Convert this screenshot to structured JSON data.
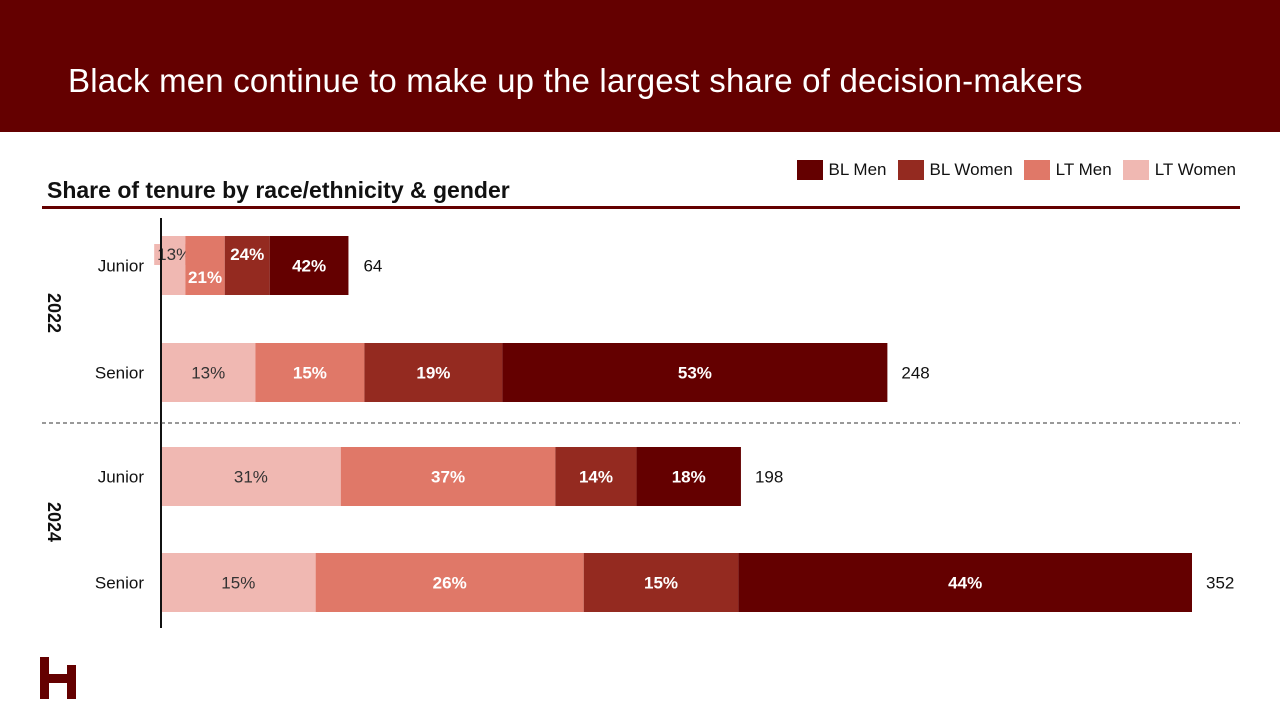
{
  "header": {
    "title": "Black men continue to make up the largest share of decision-makers"
  },
  "chart_data": {
    "type": "bar",
    "orientation": "horizontal",
    "stacked": true,
    "subtitle": "Share of tenure by race/ethnicity & gender",
    "series": [
      {
        "name": "BL Men",
        "color": "#640000"
      },
      {
        "name": "BL Women",
        "color": "#942A20"
      },
      {
        "name": "LT Men",
        "color": "#E07868"
      },
      {
        "name": "LT Women",
        "color": "#F0B8B2"
      }
    ],
    "stack_order": [
      "LT Women",
      "LT Men",
      "BL Women",
      "BL Men"
    ],
    "groups": [
      {
        "label": "2022",
        "rows": [
          {
            "label": "Junior",
            "total": 64,
            "shares": {
              "LT Women": 13,
              "LT Men": 21,
              "BL Women": 24,
              "BL Men": 42
            },
            "labels": {
              "LT Women": "13%",
              "LT Men": "21%",
              "BL Women": "24%",
              "BL Men": "42%"
            },
            "total_label": "64"
          },
          {
            "label": "Senior",
            "total": 248,
            "shares": {
              "LT Women": 13,
              "LT Men": 15,
              "BL Women": 19,
              "BL Men": 53
            },
            "labels": {
              "LT Women": "13%",
              "LT Men": "15%",
              "BL Women": "19%",
              "BL Men": "53%"
            },
            "total_label": "248"
          }
        ]
      },
      {
        "label": "2024",
        "rows": [
          {
            "label": "Junior",
            "total": 198,
            "shares": {
              "LT Women": 31,
              "LT Men": 37,
              "BL Women": 14,
              "BL Men": 18
            },
            "labels": {
              "LT Women": "31%",
              "LT Men": "37%",
              "BL Women": "14%",
              "BL Men": "18%"
            },
            "total_label": "198"
          },
          {
            "label": "Senior",
            "total": 352,
            "shares": {
              "LT Women": 15,
              "LT Men": 26,
              "BL Women": 15,
              "BL Men": 44
            },
            "labels": {
              "LT Women": "15%",
              "LT Men": "26%",
              "BL Women": "15%",
              "BL Men": "44%"
            },
            "total_label": "352"
          }
        ]
      }
    ],
    "bar_length_scale": "total",
    "x_max": 352,
    "grid": false,
    "legend_position": "top-right"
  },
  "logo": {
    "name": "h-logo-icon",
    "color": "#640000"
  }
}
